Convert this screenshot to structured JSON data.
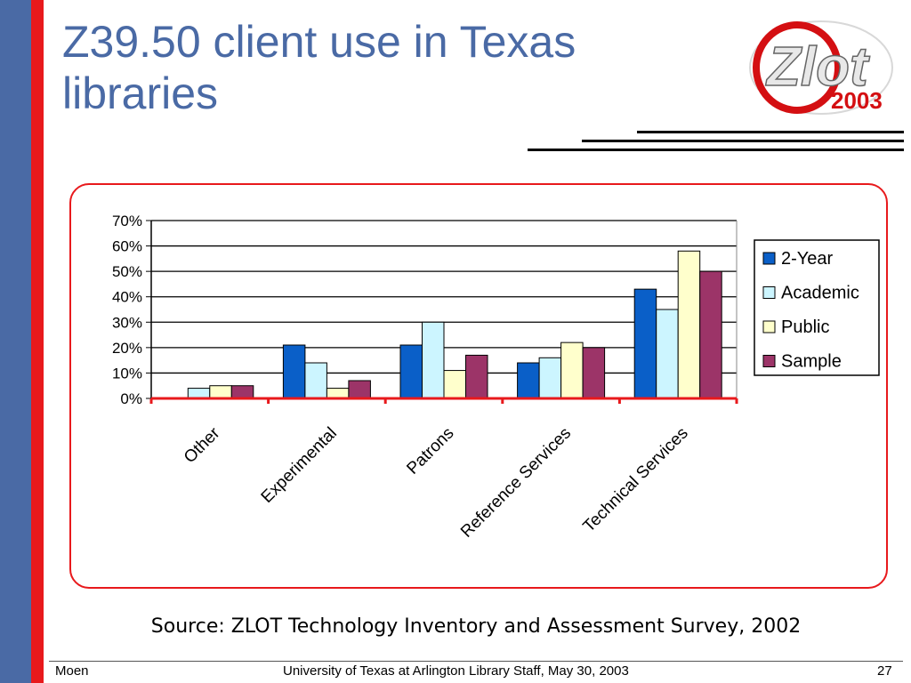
{
  "slide": {
    "title": "Z39.50 client use in Texas libraries",
    "source": "Source: ZLOT Technology Inventory and Assessment Survey, 2002",
    "logo": {
      "word": "Zlot",
      "year": "2003"
    }
  },
  "footer": {
    "left": "Moen",
    "center": "University of Texas at Arlington Library Staff, May 30, 2003",
    "page": "27"
  },
  "colors": {
    "side_bar_blue": "#4a6aa5",
    "side_bar_red": "#e8191c",
    "title": "#4a6aa5"
  },
  "chart_data": {
    "type": "bar",
    "categories": [
      "Other",
      "Experimental",
      "Patrons",
      "Reference Services",
      "Technical Services"
    ],
    "series": [
      {
        "name": "2-Year",
        "color": "#0a5fc8",
        "values": [
          0,
          21,
          21,
          14,
          43
        ]
      },
      {
        "name": "Academic",
        "color": "#ccf5ff",
        "values": [
          4,
          14,
          30,
          16,
          35
        ]
      },
      {
        "name": "Public",
        "color": "#ffffcc",
        "values": [
          5,
          4,
          11,
          22,
          58
        ]
      },
      {
        "name": "Sample",
        "color": "#9c3468",
        "values": [
          5,
          7,
          17,
          20,
          50
        ]
      }
    ],
    "yticks": [
      "0%",
      "10%",
      "20%",
      "30%",
      "40%",
      "50%",
      "60%",
      "70%"
    ],
    "ylim": [
      0,
      70
    ],
    "grid": true,
    "legend": "right"
  }
}
